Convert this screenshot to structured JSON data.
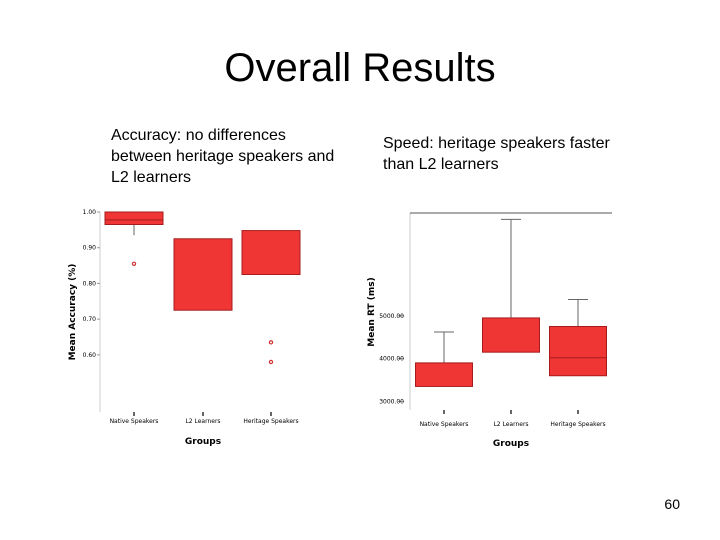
{
  "slide": {
    "title": "Overall Results",
    "caption_left": "Accuracy: no differences between heritage speakers and L2 learners",
    "caption_right": "Speed: heritage speakers faster than L2 learners",
    "page_number": "60"
  },
  "colors": {
    "box_fill": "#f03535",
    "box_stroke": "#a61c1c",
    "outlier": "#d23030",
    "axis": "#555555"
  },
  "chart_data": [
    {
      "type": "boxplot",
      "title": "",
      "xlabel": "Groups",
      "ylabel": "Mean Accuracy (%)",
      "ylim": [
        0.44,
        1.0
      ],
      "yticks": [
        0.6,
        0.7,
        0.8,
        0.9,
        1.0
      ],
      "ytick_labels": [
        "0.60",
        "0.70",
        "0.80",
        "0.90",
        "1.00"
      ],
      "categories": [
        "Native Speakers",
        "L2 Learners",
        "Heritage Speakers"
      ],
      "boxes": [
        {
          "q1": 0.965,
          "median": 0.978,
          "q3": 1.0,
          "whisker_low": 0.935,
          "whisker_high": 1.0
        },
        {
          "q1": 0.725,
          "median": null,
          "q3": 0.925,
          "whisker_low": null,
          "whisker_high": null
        },
        {
          "q1": 0.825,
          "median": null,
          "q3": 0.948,
          "whisker_low": null,
          "whisker_high": null
        }
      ],
      "outliers": [
        {
          "category": "Native Speakers",
          "y": 0.855
        },
        {
          "category": "Heritage Speakers",
          "y": 0.635
        },
        {
          "category": "Heritage Speakers",
          "y": 0.58
        }
      ],
      "grid": false
    },
    {
      "type": "boxplot",
      "title": "",
      "xlabel": "Groups",
      "ylabel": "Mean RT (ms)",
      "ylim": [
        2800,
        7400
      ],
      "yticks": [
        3000,
        4000,
        5000
      ],
      "ytick_labels": [
        "3000.00",
        "4000.00",
        "5000.00"
      ],
      "categories": [
        "Native Speakers",
        "L2 Learners",
        "Heritage Speakers"
      ],
      "boxes": [
        {
          "q1": 3350,
          "median": null,
          "q3": 3900,
          "whisker_low": null,
          "whisker_high": 4620
        },
        {
          "q1": 4150,
          "median": null,
          "q3": 4950,
          "whisker_low": null,
          "whisker_high": 7250
        },
        {
          "q1": 3600,
          "median": 4020,
          "q3": 4750,
          "whisker_low": null,
          "whisker_high": 5380
        }
      ],
      "outliers": [],
      "grid": false
    }
  ]
}
